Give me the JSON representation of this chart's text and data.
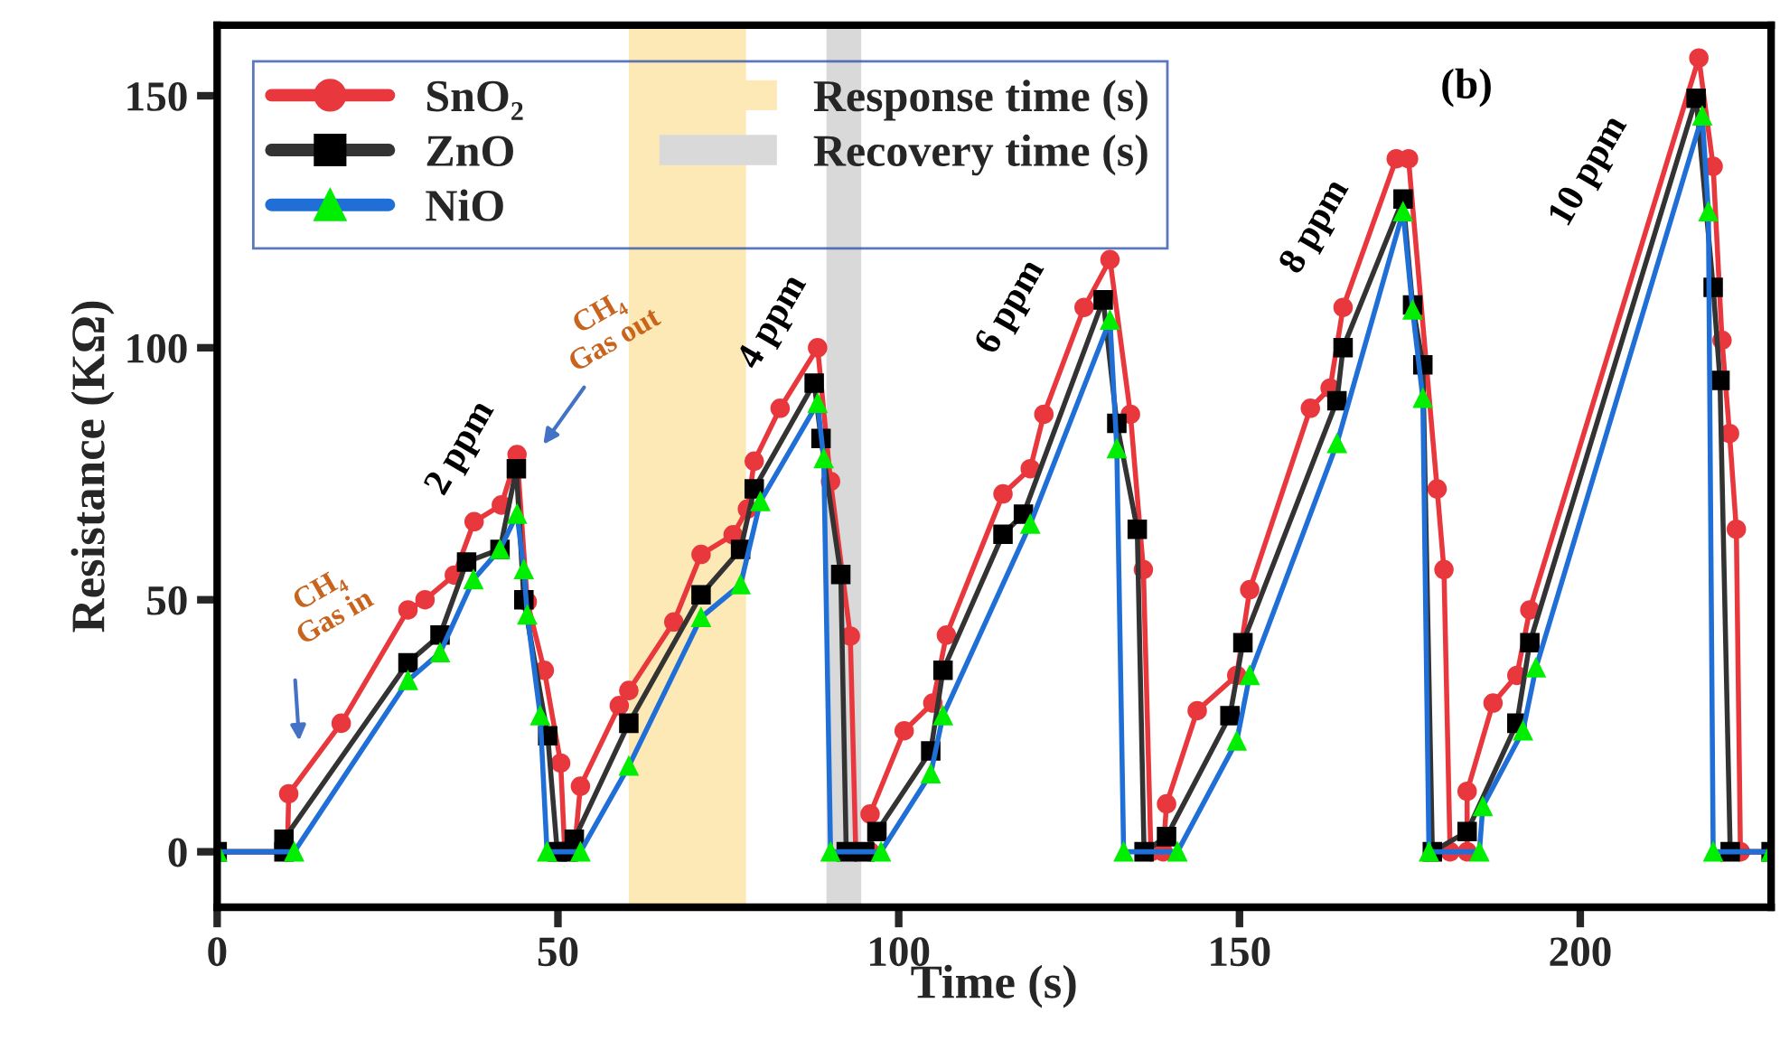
{
  "chart_data": {
    "type": "line",
    "xlabel": "Time (s)",
    "ylabel": "Resistance (KΩ)",
    "xlim": [
      0,
      228
    ],
    "ylim": [
      -11,
      164
    ],
    "xticks": [
      0,
      50,
      100,
      150,
      200
    ],
    "yticks": [
      0,
      50,
      100,
      150
    ],
    "grid": false,
    "legend": "top left",
    "series": [
      {
        "name": "SnO₂",
        "color": "#e8383d",
        "marker": "circle",
        "x": [
          0,
          10.3,
          10.5,
          18.2,
          28,
          30.5,
          34.8,
          37.7,
          41.7,
          44,
          45.5,
          48,
          50.4,
          51,
          52.4,
          53.3,
          59,
          60.4,
          67,
          71,
          75.7,
          77.8,
          78.8,
          82.6,
          88.1,
          90,
          92.9,
          93.7,
          95.8,
          95.8,
          100.8,
          105,
          107,
          115.3,
          119.3,
          121.3,
          127.2,
          131,
          134,
          135.9,
          137,
          138.8,
          139.3,
          143.8,
          149.6,
          151.5,
          160.4,
          163.3,
          165.2,
          173,
          174.8,
          179,
          180,
          180.9,
          183.4,
          183.4,
          187.2,
          190.7,
          192.6,
          217.4,
          219.5,
          220.8,
          221.9,
          222.9,
          223.5,
          228
        ],
        "values": [
          0,
          0,
          11.5,
          25.5,
          48,
          50,
          54.9,
          65.5,
          68.8,
          78.8,
          49.6,
          36,
          17.6,
          0,
          0,
          13,
          29,
          32,
          45.6,
          59,
          62.9,
          68,
          77.5,
          88,
          100,
          73.5,
          42.8,
          0,
          0,
          7.5,
          24,
          29.5,
          43,
          71,
          76,
          86.8,
          108,
          117.5,
          86.8,
          56,
          0,
          0,
          9.5,
          28,
          35,
          52,
          88,
          92,
          108,
          137.5,
          137.5,
          72,
          56,
          0,
          0,
          12,
          29.5,
          35,
          48,
          157.5,
          136,
          101.5,
          83,
          64,
          0,
          0
        ]
      },
      {
        "name": "ZnO",
        "color": "#333333",
        "marker": "square",
        "x": [
          0,
          9.8,
          9.8,
          28,
          32.7,
          36.6,
          41.5,
          43.9,
          45,
          48.5,
          49.9,
          51.5,
          52.4,
          60.4,
          71,
          76.8,
          78.8,
          87.6,
          88.6,
          91.5,
          92.3,
          95,
          96.8,
          104.7,
          106.5,
          115.3,
          118.3,
          130,
          132,
          135,
          136,
          139.3,
          148.6,
          150.5,
          164.3,
          165.2,
          174,
          175.4,
          176.9,
          178.3,
          183.4,
          190.7,
          192.6,
          217,
          219.5,
          220.5,
          222,
          228
        ],
        "values": [
          0,
          0,
          2.5,
          37.5,
          43,
          57.5,
          60,
          76,
          50,
          23,
          0,
          0,
          2.5,
          25.5,
          51,
          60,
          72,
          93,
          82,
          55,
          0,
          0,
          4,
          20,
          36,
          63,
          67,
          109.5,
          85,
          64,
          0,
          3,
          27,
          41.5,
          89.5,
          100,
          129.5,
          108.5,
          96.6,
          0,
          4,
          25.5,
          41.5,
          149.5,
          112,
          93.5,
          0,
          0
        ]
      },
      {
        "name": "NiO",
        "color": "#1f6fd6",
        "marker": "triangle",
        "x": [
          0,
          11.3,
          28,
          32.7,
          37.6,
          41.5,
          44,
          45,
          45.5,
          47.4,
          48.4,
          53.3,
          60.4,
          71,
          76.8,
          79.7,
          88.1,
          89,
          90,
          97.4,
          104.7,
          106.5,
          119.3,
          131,
          132,
          133,
          140.9,
          149.6,
          151.5,
          164.3,
          174,
          175.4,
          176.9,
          177.8,
          185.2,
          185.7,
          191.6,
          193.5,
          217.9,
          218.8,
          219.5,
          228
        ],
        "values": [
          0,
          0,
          34,
          39.5,
          54,
          60,
          67,
          56,
          47,
          27,
          0,
          0,
          17,
          46.5,
          53,
          69.5,
          89,
          78,
          0,
          0,
          15.5,
          27,
          65,
          105.5,
          80,
          0,
          0,
          22,
          35,
          81,
          127,
          107.5,
          90,
          0,
          0,
          9,
          24,
          36.5,
          146,
          127,
          0,
          0
        ]
      }
    ],
    "bands": [
      {
        "axis": "x",
        "from": 60.4,
        "to": 77.6,
        "label": "Response time (s)",
        "color": "#fde9b5"
      },
      {
        "axis": "x",
        "from": 89.4,
        "to": 94.5,
        "label": "Recovery time (s)",
        "color": "#d9d9d9"
      }
    ],
    "annotations": [
      "2 ppm",
      "4 ppm",
      "6 ppm",
      "8 ppm",
      "10 ppm",
      "CH₄\nGas in",
      "CH₄\nGas out",
      "(b)"
    ]
  }
}
